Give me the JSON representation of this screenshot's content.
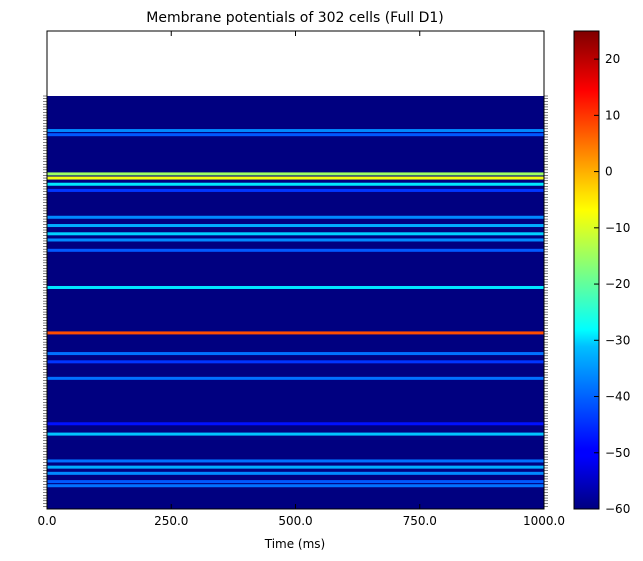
{
  "chart_data": {
    "type": "heatmap",
    "title": "Membrane potentials of 302 cells (Full D1)",
    "xlabel": "Time (ms)",
    "ylabel": "",
    "xlim": [
      0,
      1000
    ],
    "x_ticks": [
      "0.0",
      "250.0",
      "500.0",
      "750.0",
      "1000.0"
    ],
    "colorbar": {
      "colormap": "jet",
      "range": [
        -60,
        25
      ],
      "ticks": [
        "20",
        "10",
        "0",
        "−10",
        "−20",
        "−30",
        "−40",
        "−50",
        "−60"
      ]
    },
    "rows": 302,
    "baseline_potential_mV": -60,
    "notable_rows": [
      {
        "position": 0.08,
        "value": -38
      },
      {
        "position": 0.09,
        "value": -42
      },
      {
        "position": 0.185,
        "value": -15
      },
      {
        "position": 0.195,
        "value": -8
      },
      {
        "position": 0.21,
        "value": -30
      },
      {
        "position": 0.225,
        "value": -45
      },
      {
        "position": 0.29,
        "value": -38
      },
      {
        "position": 0.31,
        "value": -35
      },
      {
        "position": 0.33,
        "value": -32
      },
      {
        "position": 0.345,
        "value": -38
      },
      {
        "position": 0.37,
        "value": -42
      },
      {
        "position": 0.46,
        "value": -30
      },
      {
        "position": 0.57,
        "value": 8
      },
      {
        "position": 0.62,
        "value": -40
      },
      {
        "position": 0.64,
        "value": -45
      },
      {
        "position": 0.68,
        "value": -40
      },
      {
        "position": 0.79,
        "value": -48
      },
      {
        "position": 0.815,
        "value": -33
      },
      {
        "position": 0.88,
        "value": -40
      },
      {
        "position": 0.895,
        "value": -35
      },
      {
        "position": 0.91,
        "value": -38
      },
      {
        "position": 0.93,
        "value": -42
      },
      {
        "position": 0.94,
        "value": -40
      }
    ]
  }
}
